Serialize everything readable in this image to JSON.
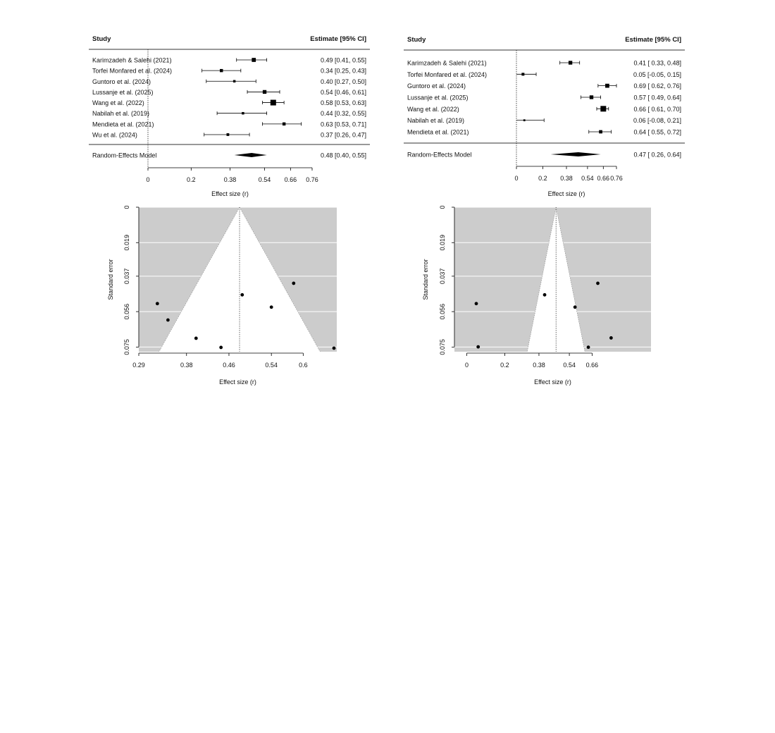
{
  "chart_data": [
    {
      "type": "forest",
      "header": {
        "study": "Study",
        "estimate": "Estimate [95% CI]"
      },
      "xlabel": "Effect size (r)",
      "xticks": [
        0,
        0.2,
        0.38,
        0.54,
        0.66,
        0.76
      ],
      "xtick_labels": [
        "0",
        "0.2",
        "0.38",
        "0.54",
        "0.66",
        "0.76"
      ],
      "xlim": [
        0,
        0.76
      ],
      "studies": [
        {
          "name": "Karimzadeh & Salehi (2021)",
          "estimate": 0.49,
          "lower": 0.41,
          "upper": 0.55,
          "label": "0.49 [0.41, 0.55]"
        },
        {
          "name": "Torfei Monfared et al. (2024)",
          "estimate": 0.34,
          "lower": 0.25,
          "upper": 0.43,
          "label": "0.34 [0.25, 0.43]"
        },
        {
          "name": "Guntoro et al. (2024)",
          "estimate": 0.4,
          "lower": 0.27,
          "upper": 0.5,
          "label": "0.40 [0.27, 0.50]"
        },
        {
          "name": "Lussanje et al. (2025)",
          "estimate": 0.54,
          "lower": 0.46,
          "upper": 0.61,
          "label": "0.54 [0.46, 0.61]"
        },
        {
          "name": "Wang et al. (2022)",
          "estimate": 0.58,
          "lower": 0.53,
          "upper": 0.63,
          "label": "0.58 [0.53, 0.63]"
        },
        {
          "name": "Nabilah et al. (2019)",
          "estimate": 0.44,
          "lower": 0.32,
          "upper": 0.55,
          "label": "0.44 [0.32, 0.55]"
        },
        {
          "name": "Mendieta et al. (2021)",
          "estimate": 0.63,
          "lower": 0.53,
          "upper": 0.71,
          "label": "0.63 [0.53, 0.71]"
        },
        {
          "name": "Wu et al. (2024)",
          "estimate": 0.37,
          "lower": 0.26,
          "upper": 0.47,
          "label": "0.37 [0.26, 0.47]"
        }
      ],
      "summary": {
        "name": "Random-Effects Model",
        "estimate": 0.48,
        "lower": 0.4,
        "upper": 0.55,
        "label": "0.48 [0.40, 0.55]"
      }
    },
    {
      "type": "forest",
      "header": {
        "study": "Study",
        "estimate": "Estimate [95% CI]"
      },
      "xlabel": "Effect size (r)",
      "xticks": [
        0,
        0.2,
        0.38,
        0.54,
        0.66,
        0.76
      ],
      "xtick_labels": [
        "0",
        "0.2",
        "0.38",
        "0.54",
        "0.66",
        "0.76"
      ],
      "xlim": [
        0,
        0.76
      ],
      "studies": [
        {
          "name": "Karimzadeh & Salehi (2021)",
          "estimate": 0.41,
          "lower": 0.33,
          "upper": 0.48,
          "label": "0.41 [ 0.33, 0.48]"
        },
        {
          "name": "Torfei Monfared et al. (2024)",
          "estimate": 0.05,
          "lower": -0.05,
          "upper": 0.15,
          "label": "0.05 [-0.05, 0.15]"
        },
        {
          "name": "Guntoro et al. (2024)",
          "estimate": 0.69,
          "lower": 0.62,
          "upper": 0.76,
          "label": "0.69 [ 0.62, 0.76]"
        },
        {
          "name": "Lussanje et al. (2025)",
          "estimate": 0.57,
          "lower": 0.49,
          "upper": 0.64,
          "label": "0.57 [ 0.49, 0.64]"
        },
        {
          "name": "Wang et al. (2022)",
          "estimate": 0.66,
          "lower": 0.61,
          "upper": 0.7,
          "label": "0.66 [ 0.61, 0.70]"
        },
        {
          "name": "Nabilah et al. (2019)",
          "estimate": 0.06,
          "lower": -0.08,
          "upper": 0.21,
          "label": "0.06 [-0.08, 0.21]"
        },
        {
          "name": "Mendieta et al. (2021)",
          "estimate": 0.64,
          "lower": 0.55,
          "upper": 0.72,
          "label": "0.64 [ 0.55, 0.72]"
        }
      ],
      "summary": {
        "name": "Random-Effects Model",
        "estimate": 0.47,
        "lower": 0.26,
        "upper": 0.64,
        "label": "0.47 [ 0.26, 0.64]"
      }
    },
    {
      "type": "funnel",
      "xlabel": "Effect size (r)",
      "ylabel": "Standard error",
      "xticks": [
        0.29,
        0.38,
        0.46,
        0.54,
        0.6
      ],
      "xtick_labels": [
        "0.29",
        "0.38",
        "0.46",
        "0.54",
        "0.6"
      ],
      "yticks": [
        0,
        0.019,
        0.037,
        0.056,
        0.075
      ],
      "ytick_labels": [
        "0",
        "0.019",
        "0.037",
        "0.056",
        "0.075"
      ],
      "xlim": [
        0.29,
        0.6633
      ],
      "ylim": [
        0,
        0.0775
      ],
      "grid": true,
      "center": 0.48,
      "points": [
        {
          "x": 0.325,
          "y": 0.0517
        },
        {
          "x": 0.345,
          "y": 0.0605
        },
        {
          "x": 0.398,
          "y": 0.0703
        },
        {
          "x": 0.445,
          "y": 0.0752
        },
        {
          "x": 0.485,
          "y": 0.047
        },
        {
          "x": 0.54,
          "y": 0.0536
        },
        {
          "x": 0.582,
          "y": 0.0408
        },
        {
          "x": 0.658,
          "y": 0.0756
        }
      ]
    },
    {
      "type": "funnel",
      "xlabel": "Effect size (r)",
      "ylabel": "Standard error",
      "xticks": [
        0,
        0.2,
        0.38,
        0.54,
        0.66
      ],
      "xtick_labels": [
        "0",
        "0.2",
        "0.38",
        "0.54",
        "0.66"
      ],
      "yticks": [
        0,
        0.019,
        0.037,
        0.056,
        0.075
      ],
      "ytick_labels": [
        "0",
        "0.019",
        "0.037",
        "0.056",
        "0.075"
      ],
      "xlim": [
        -0.065,
        0.97
      ],
      "ylim": [
        0,
        0.0775
      ],
      "grid": true,
      "center": 0.47,
      "points": [
        {
          "x": 0.05,
          "y": 0.0517
        },
        {
          "x": 0.06,
          "y": 0.0749
        },
        {
          "x": 0.41,
          "y": 0.047
        },
        {
          "x": 0.57,
          "y": 0.0536
        },
        {
          "x": 0.64,
          "y": 0.0751
        },
        {
          "x": 0.69,
          "y": 0.0408
        },
        {
          "x": 0.76,
          "y": 0.0701
        }
      ]
    }
  ]
}
